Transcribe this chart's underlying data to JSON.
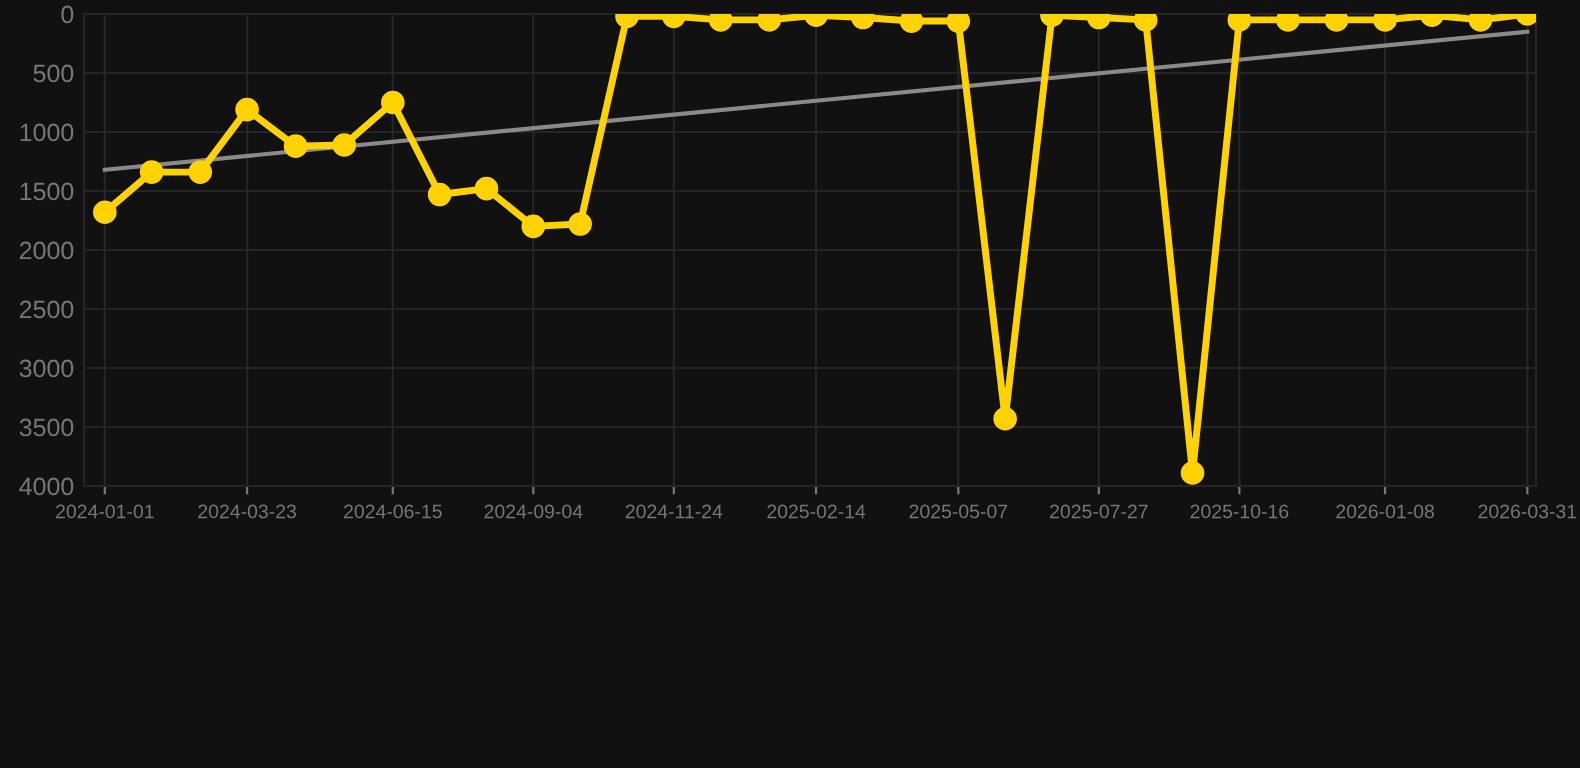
{
  "chart_data": {
    "type": "line",
    "x": [
      "2024-01-01",
      "2024-01-28",
      "2024-02-25",
      "2024-03-23",
      "2024-04-20",
      "2024-05-18",
      "2024-06-15",
      "2024-07-12",
      "2024-08-08",
      "2024-09-04",
      "2024-10-01",
      "2024-10-28",
      "2024-11-24",
      "2024-12-21",
      "2025-01-18",
      "2025-02-14",
      "2025-03-13",
      "2025-04-10",
      "2025-05-07",
      "2025-06-03",
      "2025-06-30",
      "2025-07-27",
      "2025-08-23",
      "2025-09-19",
      "2025-10-16",
      "2025-11-13",
      "2025-12-11",
      "2026-01-08",
      "2026-02-04",
      "2026-03-04",
      "2026-03-31"
    ],
    "series": [
      {
        "color": "#ffd200",
        "marker": "circle",
        "values": [
          1680,
          1340,
          1340,
          810,
          1120,
          1110,
          750,
          1530,
          1480,
          1800,
          1780,
          20,
          20,
          50,
          50,
          10,
          30,
          60,
          60,
          3430,
          10,
          30,
          50,
          3890,
          50,
          50,
          50,
          50,
          10,
          50,
          0
        ]
      },
      {
        "type": "line",
        "color": "#8a8a8a",
        "marker": "none",
        "x": [
          "2024-01-01",
          "2026-03-31"
        ],
        "values": [
          1320,
          150
        ]
      }
    ],
    "ylim": [
      4000,
      0
    ],
    "yticks": [
      0,
      500,
      1000,
      1500,
      2000,
      2500,
      3000,
      3500,
      4000
    ],
    "xlim": [
      "2023-12-20",
      "2026-04-05"
    ],
    "xticks": [
      "2024-01-01",
      "2024-03-23",
      "2024-06-15",
      "2024-09-04",
      "2024-11-24",
      "2025-02-14",
      "2025-05-07",
      "2025-07-27",
      "2025-10-16",
      "2026-01-08",
      "2026-03-31"
    ],
    "grid": true,
    "line_style": "solid"
  }
}
